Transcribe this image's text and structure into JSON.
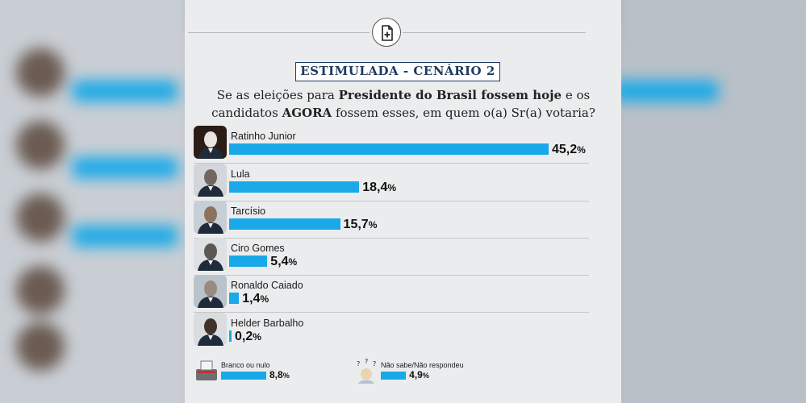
{
  "scenario_label": "ESTIMULADA - CENÁRIO 2",
  "question": {
    "part1": "Se as eleições para ",
    "bold1": "Presidente do Brasil fossem hoje",
    "part2": " e os candidatos ",
    "bold2": "AGORA",
    "part3": " fossem esses, em quem o(a) Sr(a) votaria?"
  },
  "colors": {
    "bar": "#19a9e8",
    "frame": "#1e3a5f",
    "card": "#ebeced"
  },
  "icons": {
    "document_button": "add-document-icon"
  },
  "chart_data": {
    "type": "bar",
    "orientation": "horizontal",
    "title": "ESTIMULADA - CENÁRIO 2",
    "categories": [
      "Ratinho Junior",
      "Lula",
      "Tarcísio",
      "Ciro Gomes",
      "Ronaldo Caiado",
      "Helder Barbalho",
      "Branco ou nulo",
      "Não sabe/Não respondeu"
    ],
    "values": [
      45.2,
      18.4,
      15.7,
      5.4,
      1.4,
      0.2,
      8.8,
      4.9
    ],
    "value_labels": [
      "45,2",
      "18,4",
      "15,7",
      "5,4",
      "1,4",
      "0,2",
      "8,8",
      "4,9"
    ],
    "unit": "%",
    "xlim": [
      0,
      45.2
    ]
  }
}
